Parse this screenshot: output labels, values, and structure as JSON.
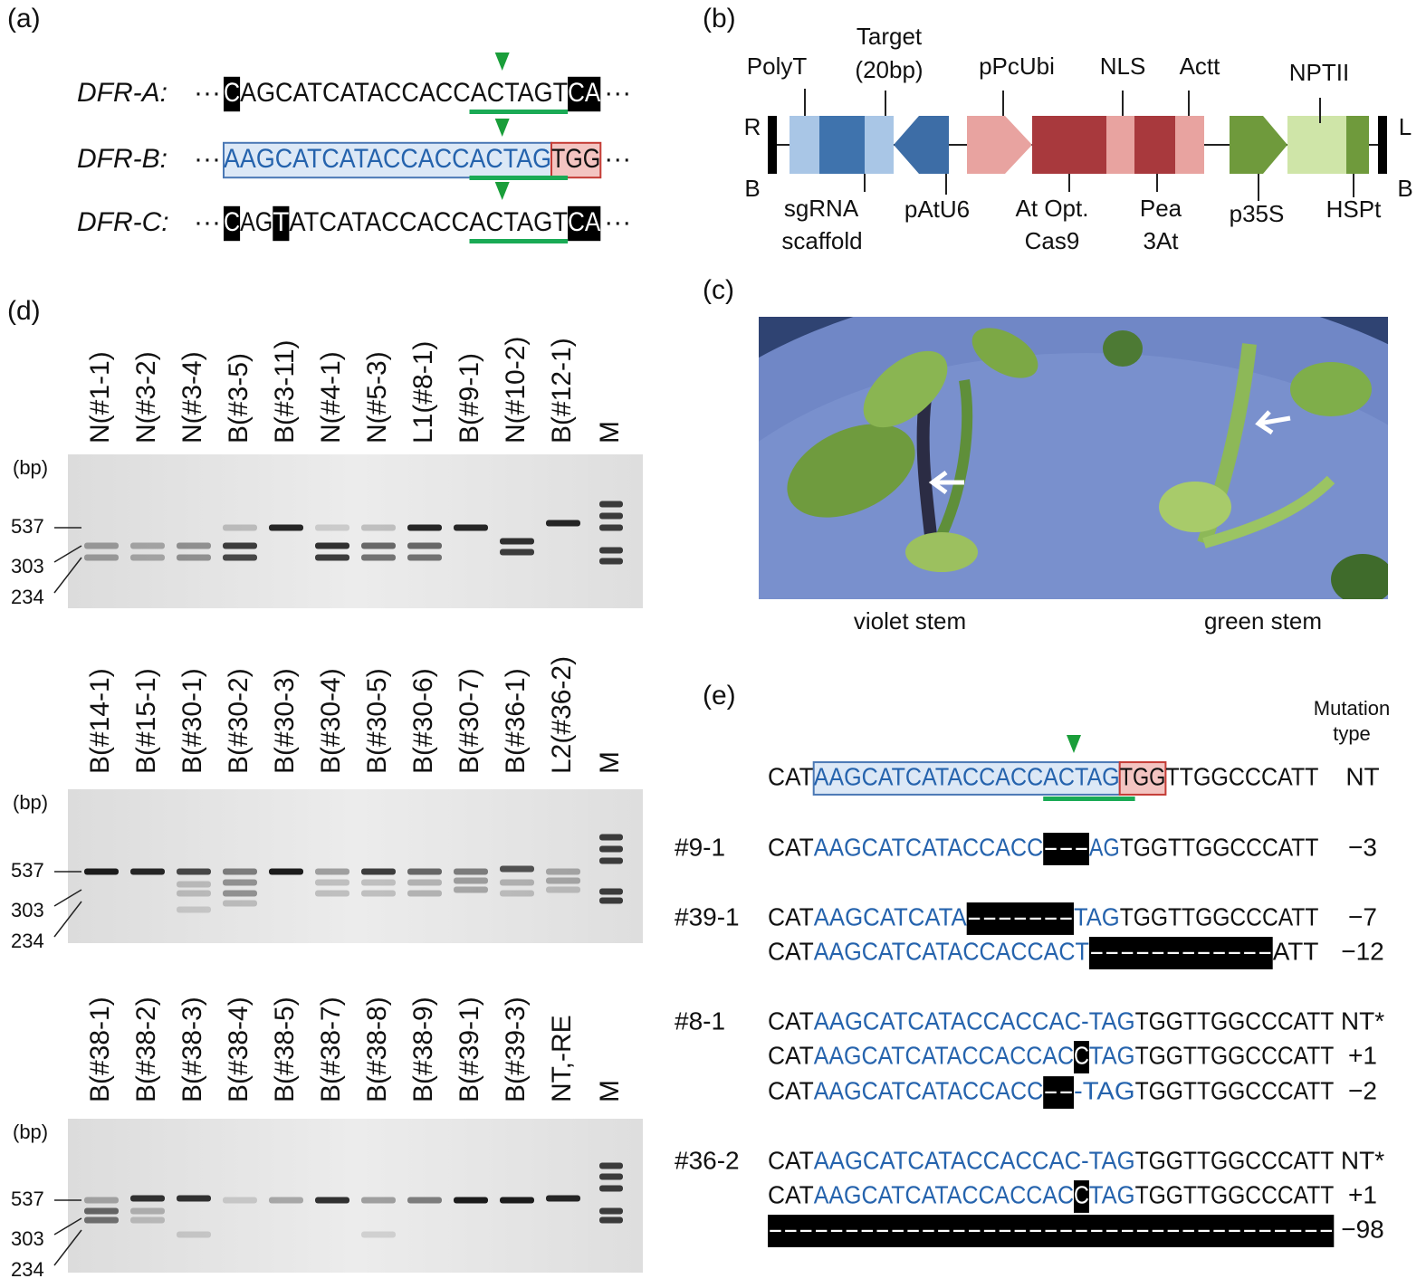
{
  "panel_labels": [
    "(a)",
    "(b)",
    "(c)",
    "(d)",
    "(e)"
  ],
  "a": {
    "rows": [
      {
        "name": "DFR-A:",
        "lead": "···",
        "segments": [
          {
            "text": "C",
            "style": "black-box"
          },
          {
            "text": "AGCATCATACCACCACTAGT",
            "style": "plain"
          },
          {
            "text": "CA",
            "style": "black-box"
          }
        ],
        "trail": "···"
      },
      {
        "name": "DFR-B:",
        "lead": "···",
        "segments": [
          {
            "text": "AAGCATCATACCACCACTAG",
            "style": "blue-box"
          },
          {
            "text": "TGG",
            "style": "red-box"
          }
        ],
        "trail": "···"
      },
      {
        "name": "DFR-C:",
        "lead": "···",
        "segments": [
          {
            "text": "C",
            "style": "black-box"
          },
          {
            "text": "AG",
            "style": "plain"
          },
          {
            "text": "T",
            "style": "black-box"
          },
          {
            "text": "ATCATACCACCACTAGT",
            "style": "plain"
          },
          {
            "text": "CA",
            "style": "black-box"
          }
        ],
        "trail": "···"
      }
    ]
  },
  "b": {
    "labels": [
      "PolyT",
      "Target",
      "(20bp)",
      "pPcUbi",
      "NLS",
      "Actt",
      "NPTII",
      "R",
      "B",
      "L",
      "B",
      "sgRNA",
      "scaffold",
      "pAtU6",
      "At Opt.",
      "Cas9",
      "Pea",
      "3At",
      "p35S",
      "HSPt"
    ]
  },
  "c": {
    "captions": [
      "violet stem",
      "green stem"
    ]
  },
  "d": {
    "gels": [
      {
        "lanes": [
          "N(#1-1)",
          "N(#3-2)",
          "N(#3-4)",
          "B(#3-5)",
          "B(#3-11)",
          "N(#4-1)",
          "N(#5-3)",
          "L1(#8-1)",
          "B(#9-1)",
          "N(#10-2)",
          "B(#12-1)",
          "M"
        ],
        "unit": "(bp)",
        "sizes": [
          537,
          303,
          234
        ]
      },
      {
        "lanes": [
          "B(#14-1)",
          "B(#15-1)",
          "B(#30-1)",
          "B(#30-2)",
          "B(#30-3)",
          "B(#30-4)",
          "B(#30-5)",
          "B(#30-6)",
          "B(#30-7)",
          "B(#36-1)",
          "L2(#36-2)",
          "M"
        ],
        "unit": "(bp)",
        "sizes": [
          537,
          303,
          234
        ]
      },
      {
        "lanes": [
          "B(#38-1)",
          "B(#38-2)",
          "B(#38-3)",
          "B(#38-4)",
          "B(#38-5)",
          "B(#38-7)",
          "B(#38-8)",
          "B(#38-9)",
          "B(#39-1)",
          "B(#39-3)",
          "NT,-RE",
          "M"
        ],
        "unit": "(bp)",
        "sizes": [
          537,
          303,
          234
        ]
      }
    ]
  },
  "e": {
    "header": [
      "Mutation",
      "type"
    ],
    "reference": {
      "segments": [
        {
          "text": "CAT",
          "style": "plain"
        },
        {
          "text": "AAGCATCATACCACCACTAG",
          "style": "blue-box"
        },
        {
          "text": "TGG",
          "style": "red-box"
        },
        {
          "text": "TTGGCCCATT",
          "style": "plain"
        }
      ],
      "type": "NT"
    },
    "groups": [
      {
        "name": "#9-1",
        "rows": [
          {
            "segments": [
              {
                "text": "CAT",
                "style": "plain"
              },
              {
                "text": "AAGCATCATACCACC",
                "style": "blue"
              },
              {
                "text": "---",
                "style": "black-box"
              },
              {
                "text": "AG",
                "style": "blue"
              },
              {
                "text": "TGGTTGGCCCATT",
                "style": "plain"
              }
            ],
            "type": "−3"
          }
        ]
      },
      {
        "name": "#39-1",
        "rows": [
          {
            "segments": [
              {
                "text": "CAT",
                "style": "plain"
              },
              {
                "text": "AAGCATCATA",
                "style": "blue"
              },
              {
                "text": "-------",
                "style": "black-box"
              },
              {
                "text": "TAG",
                "style": "blue"
              },
              {
                "text": "TGGTTGGCCCATT",
                "style": "plain"
              }
            ],
            "type": "−7"
          },
          {
            "segments": [
              {
                "text": "CAT",
                "style": "plain"
              },
              {
                "text": "AAGCATCATACCACCACT",
                "style": "blue"
              },
              {
                "text": "------------",
                "style": "black-box"
              },
              {
                "text": "ATT",
                "style": "plain"
              }
            ],
            "type": "−12"
          }
        ]
      },
      {
        "name": "#8-1",
        "rows": [
          {
            "segments": [
              {
                "text": "CAT",
                "style": "plain"
              },
              {
                "text": "AAGCATCATACCACCAC-TAG",
                "style": "blue"
              },
              {
                "text": "TGGTTGGCCCATT",
                "style": "plain"
              }
            ],
            "type": "NT*"
          },
          {
            "segments": [
              {
                "text": "CAT",
                "style": "plain"
              },
              {
                "text": "AAGCATCATACCACCAC",
                "style": "blue"
              },
              {
                "text": "C",
                "style": "black-box"
              },
              {
                "text": "TAG",
                "style": "blue"
              },
              {
                "text": "TGGTTGGCCCATT",
                "style": "plain"
              }
            ],
            "type": "+1"
          },
          {
            "segments": [
              {
                "text": "CAT",
                "style": "plain"
              },
              {
                "text": "AAGCATCATACCACC",
                "style": "blue"
              },
              {
                "text": "--",
                "style": "black-box"
              },
              {
                "text": "-TAG",
                "style": "blue"
              },
              {
                "text": "TGGTTGGCCCATT",
                "style": "plain"
              }
            ],
            "type": "−2"
          }
        ]
      },
      {
        "name": "#36-2",
        "rows": [
          {
            "segments": [
              {
                "text": "CAT",
                "style": "plain"
              },
              {
                "text": "AAGCATCATACCACCAC-TAG",
                "style": "blue"
              },
              {
                "text": "TGGTTGGCCCATT",
                "style": "plain"
              }
            ],
            "type": "NT*"
          },
          {
            "segments": [
              {
                "text": "CAT",
                "style": "plain"
              },
              {
                "text": "AAGCATCATACCACCAC",
                "style": "blue"
              },
              {
                "text": "C",
                "style": "black-box"
              },
              {
                "text": "TAG",
                "style": "blue"
              },
              {
                "text": "TGGTTGGCCCATT",
                "style": "plain"
              }
            ],
            "type": "+1"
          },
          {
            "segments": [
              {
                "text": "-------------------------------------",
                "style": "black-box"
              }
            ],
            "type": "−98"
          }
        ]
      }
    ]
  }
}
